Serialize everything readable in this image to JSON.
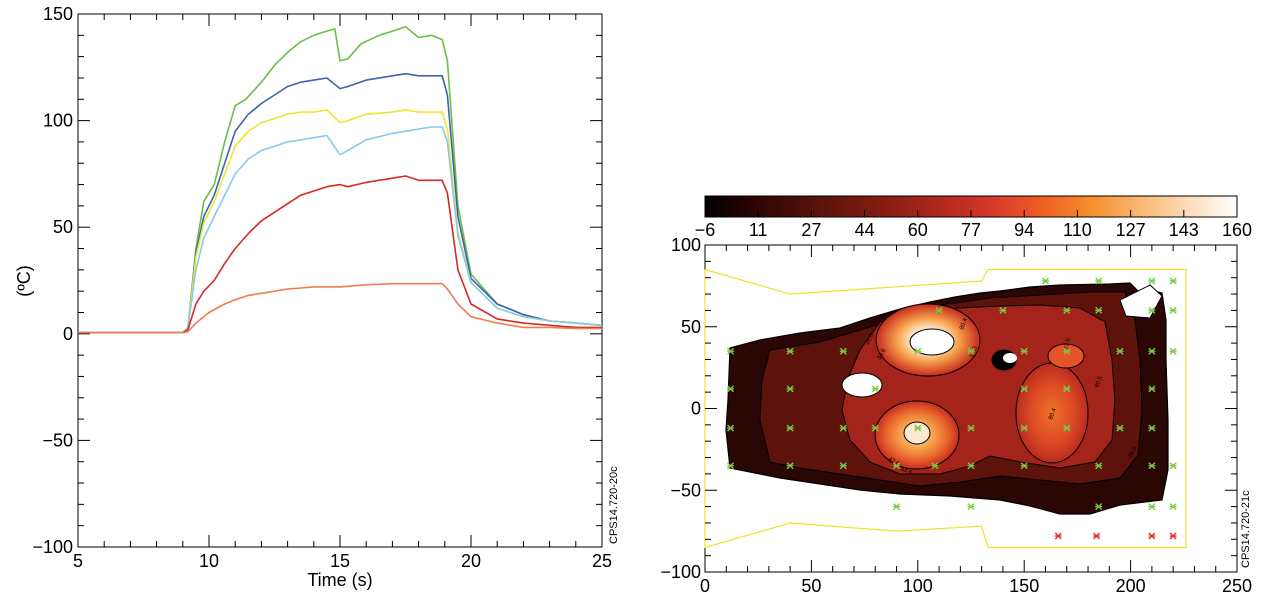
{
  "chart_data": [
    {
      "type": "line",
      "xlabel": "Time (s)",
      "ylabel": "(ºC)",
      "xlim": [
        5,
        25
      ],
      "ylim": [
        -100,
        150
      ],
      "x_ticks": [
        "5",
        "10",
        "15",
        "20",
        "25"
      ],
      "y_ticks": [
        "−100",
        "−50",
        "0",
        "50",
        "100",
        "150"
      ],
      "side_label": "CPS14.720-20c",
      "series": [
        {
          "color": "#6abf45",
          "points": [
            [
              5,
              0.5
            ],
            [
              9,
              0.5
            ],
            [
              9.2,
              3
            ],
            [
              9.5,
              40
            ],
            [
              9.8,
              62
            ],
            [
              10.2,
              70
            ],
            [
              10.6,
              90
            ],
            [
              11,
              107
            ],
            [
              11.4,
              110
            ],
            [
              12,
              118
            ],
            [
              12.5,
              126
            ],
            [
              13,
              132
            ],
            [
              13.5,
              137
            ],
            [
              14,
              140
            ],
            [
              14.5,
              142
            ],
            [
              14.8,
              143
            ],
            [
              15,
              128
            ],
            [
              15.3,
              129
            ],
            [
              15.8,
              136
            ],
            [
              16.5,
              140
            ],
            [
              17,
              142
            ],
            [
              17.5,
              144
            ],
            [
              18,
              139
            ],
            [
              18.5,
              140
            ],
            [
              18.9,
              138
            ],
            [
              19.1,
              128
            ],
            [
              19.5,
              60
            ],
            [
              20,
              28
            ],
            [
              21,
              14
            ],
            [
              22,
              9
            ],
            [
              23,
              6
            ],
            [
              24,
              5
            ],
            [
              25,
              4
            ]
          ]
        },
        {
          "color": "#3d63b0",
          "points": [
            [
              5,
              0.5
            ],
            [
              9,
              0.5
            ],
            [
              9.2,
              3
            ],
            [
              9.5,
              38
            ],
            [
              9.8,
              55
            ],
            [
              10.2,
              65
            ],
            [
              10.6,
              80
            ],
            [
              11,
              95
            ],
            [
              11.5,
              103
            ],
            [
              12,
              108
            ],
            [
              12.5,
              112
            ],
            [
              13,
              116
            ],
            [
              13.5,
              118
            ],
            [
              14,
              119
            ],
            [
              14.5,
              120
            ],
            [
              15,
              115
            ],
            [
              15.3,
              116
            ],
            [
              16,
              119
            ],
            [
              17,
              121
            ],
            [
              17.5,
              122
            ],
            [
              18,
              121
            ],
            [
              18.5,
              121
            ],
            [
              18.9,
              121
            ],
            [
              19.1,
              112
            ],
            [
              19.5,
              55
            ],
            [
              20,
              26
            ],
            [
              21,
              14
            ],
            [
              22,
              9
            ],
            [
              23,
              6
            ],
            [
              24,
              5
            ],
            [
              25,
              4
            ]
          ]
        },
        {
          "color": "#f0e433",
          "points": [
            [
              5,
              0.5
            ],
            [
              9,
              0.5
            ],
            [
              9.2,
              3
            ],
            [
              9.5,
              36
            ],
            [
              9.8,
              52
            ],
            [
              10.2,
              62
            ],
            [
              10.6,
              75
            ],
            [
              11,
              88
            ],
            [
              11.5,
              95
            ],
            [
              12,
              99
            ],
            [
              12.5,
              101
            ],
            [
              13,
              103
            ],
            [
              13.5,
              104
            ],
            [
              14,
              104
            ],
            [
              14.5,
              105
            ],
            [
              15,
              99
            ],
            [
              15.3,
              100
            ],
            [
              16,
              103
            ],
            [
              17,
              104
            ],
            [
              17.5,
              105
            ],
            [
              18,
              104
            ],
            [
              18.5,
              104
            ],
            [
              18.9,
              104
            ],
            [
              19.1,
              96
            ],
            [
              19.5,
              48
            ],
            [
              20,
              24
            ],
            [
              21,
              12
            ],
            [
              22,
              8
            ],
            [
              23,
              6
            ],
            [
              24,
              5
            ],
            [
              25,
              4
            ]
          ]
        },
        {
          "color": "#86cbe8",
          "points": [
            [
              5,
              0.5
            ],
            [
              9,
              0.5
            ],
            [
              9.2,
              3
            ],
            [
              9.5,
              30
            ],
            [
              9.8,
              45
            ],
            [
              10.2,
              55
            ],
            [
              10.6,
              65
            ],
            [
              11,
              75
            ],
            [
              11.5,
              82
            ],
            [
              12,
              86
            ],
            [
              12.5,
              88
            ],
            [
              13,
              90
            ],
            [
              13.5,
              91
            ],
            [
              14,
              92
            ],
            [
              14.5,
              93
            ],
            [
              15,
              84
            ],
            [
              15.3,
              86
            ],
            [
              16,
              91
            ],
            [
              17,
              94
            ],
            [
              17.5,
              95
            ],
            [
              18,
              96
            ],
            [
              18.5,
              97
            ],
            [
              18.9,
              97
            ],
            [
              19.1,
              90
            ],
            [
              19.5,
              46
            ],
            [
              20,
              24
            ],
            [
              21,
              12
            ],
            [
              22,
              8
            ],
            [
              23,
              6
            ],
            [
              24,
              5
            ],
            [
              25,
              4
            ]
          ]
        },
        {
          "color": "#d42a23",
          "points": [
            [
              5,
              0.5
            ],
            [
              9,
              0.5
            ],
            [
              9.2,
              2
            ],
            [
              9.5,
              14
            ],
            [
              9.8,
              20
            ],
            [
              10.2,
              25
            ],
            [
              10.6,
              33
            ],
            [
              11,
              40
            ],
            [
              11.5,
              47
            ],
            [
              12,
              53
            ],
            [
              12.5,
              57
            ],
            [
              13,
              61
            ],
            [
              13.5,
              65
            ],
            [
              14,
              67
            ],
            [
              14.5,
              69
            ],
            [
              15,
              70
            ],
            [
              15.3,
              69
            ],
            [
              16,
              71
            ],
            [
              17,
              73
            ],
            [
              17.5,
              74
            ],
            [
              18,
              72
            ],
            [
              18.5,
              72
            ],
            [
              18.9,
              72
            ],
            [
              19.1,
              66
            ],
            [
              19.5,
              30
            ],
            [
              20,
              14
            ],
            [
              21,
              7
            ],
            [
              22,
              5
            ],
            [
              23,
              4
            ],
            [
              24,
              3
            ],
            [
              25,
              3
            ]
          ]
        },
        {
          "color": "#f07d50",
          "points": [
            [
              5,
              0.5
            ],
            [
              9,
              0.5
            ],
            [
              9.2,
              1
            ],
            [
              9.5,
              5
            ],
            [
              10,
              10
            ],
            [
              10.6,
              14
            ],
            [
              11,
              16
            ],
            [
              11.5,
              18
            ],
            [
              12,
              19
            ],
            [
              12.5,
              20
            ],
            [
              13,
              21
            ],
            [
              13.5,
              21.5
            ],
            [
              14,
              22
            ],
            [
              14.5,
              22
            ],
            [
              15,
              22
            ],
            [
              15.5,
              22.5
            ],
            [
              16,
              23
            ],
            [
              17,
              23.5
            ],
            [
              17.5,
              23.5
            ],
            [
              18,
              23.5
            ],
            [
              18.9,
              23.5
            ],
            [
              19.1,
              21
            ],
            [
              19.5,
              14
            ],
            [
              20,
              8
            ],
            [
              21,
              5
            ],
            [
              22,
              3
            ],
            [
              23,
              3
            ],
            [
              24,
              2.5
            ],
            [
              25,
              2.5
            ]
          ]
        }
      ]
    },
    {
      "type": "heatmap",
      "xlim": [
        0,
        250
      ],
      "ylim": [
        -100,
        100
      ],
      "x_ticks": [
        "0",
        "50",
        "100",
        "150",
        "200",
        "250"
      ],
      "y_ticks": [
        "−100",
        "−50",
        "0",
        "50",
        "100"
      ],
      "colorbar": {
        "ticks": [
          "−6",
          "11",
          "27",
          "44",
          "60",
          "77",
          "94",
          "110",
          "127",
          "143",
          "160"
        ],
        "colors": [
          "#000000",
          "#2b0504",
          "#4d0f09",
          "#6f180e",
          "#921f14",
          "#b52a1f",
          "#d9392a",
          "#ee6024",
          "#f68f2c",
          "#f9b772",
          "#fcdcba",
          "#ffffff"
        ]
      },
      "side_label": "CPS14.720-21c",
      "outline_color": "#f2df2b",
      "outline": [
        [
          0,
          85
        ],
        [
          40,
          70
        ],
        [
          130,
          78
        ],
        [
          133,
          85
        ],
        [
          226,
          85
        ],
        [
          226,
          -85
        ],
        [
          133,
          -85
        ],
        [
          130,
          -72
        ],
        [
          90,
          -75
        ],
        [
          40,
          -70
        ],
        [
          0,
          -85
        ]
      ],
      "contour_labels": [
        "26.6",
        "33.6",
        "80.4",
        "17.5",
        "47.6",
        "33.4",
        "80.4",
        "27.5",
        "60.5",
        "26.6"
      ],
      "sensors_green": [
        [
          12,
          35
        ],
        [
          12,
          12
        ],
        [
          12,
          -12
        ],
        [
          12,
          -35
        ],
        [
          40,
          35
        ],
        [
          40,
          12
        ],
        [
          40,
          -12
        ],
        [
          40,
          -35
        ],
        [
          65,
          35
        ],
        [
          65,
          -12
        ],
        [
          65,
          -35
        ],
        [
          80,
          12
        ],
        [
          80,
          -12
        ],
        [
          90,
          -35
        ],
        [
          90,
          -60
        ],
        [
          100,
          35
        ],
        [
          100,
          -12
        ],
        [
          108,
          -35
        ],
        [
          110,
          60
        ],
        [
          125,
          35
        ],
        [
          125,
          -12
        ],
        [
          125,
          -35
        ],
        [
          125,
          -60
        ],
        [
          140,
          60
        ],
        [
          150,
          35
        ],
        [
          150,
          12
        ],
        [
          150,
          -12
        ],
        [
          150,
          -35
        ],
        [
          160,
          78
        ],
        [
          170,
          60
        ],
        [
          170,
          35
        ],
        [
          170,
          12
        ],
        [
          170,
          -12
        ],
        [
          185,
          78
        ],
        [
          185,
          60
        ],
        [
          185,
          -35
        ],
        [
          185,
          -60
        ],
        [
          195,
          35
        ],
        [
          195,
          -12
        ],
        [
          210,
          78
        ],
        [
          210,
          60
        ],
        [
          210,
          35
        ],
        [
          210,
          12
        ],
        [
          210,
          -12
        ],
        [
          210,
          -35
        ],
        [
          210,
          -60
        ],
        [
          220,
          78
        ],
        [
          220,
          60
        ],
        [
          220,
          35
        ],
        [
          220,
          -35
        ],
        [
          220,
          -60
        ]
      ],
      "sensors_red": [
        [
          166,
          -78
        ],
        [
          184,
          -78
        ],
        [
          210,
          -78
        ],
        [
          220,
          -78
        ]
      ]
    }
  ]
}
